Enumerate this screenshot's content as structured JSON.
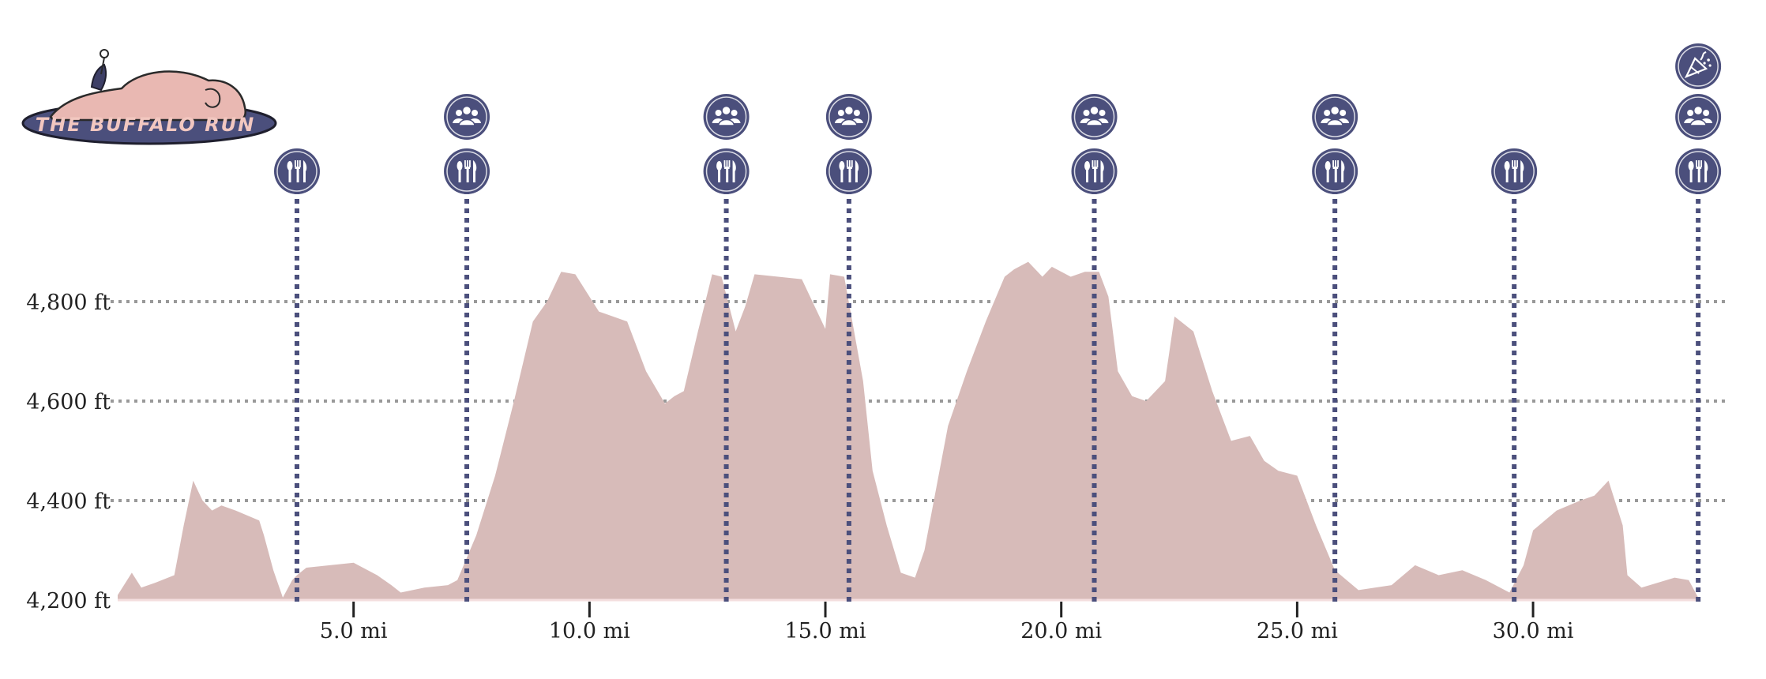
{
  "logo": {
    "text": "THE BUFFALO RUN"
  },
  "colors": {
    "area_fill": "#d7bbb9",
    "marker": "#4b4f7c",
    "grid": "#999999",
    "logo_water": "#4b4f7c",
    "logo_buffalo": "#e9b8b2"
  },
  "chart_data": {
    "type": "area",
    "title": "",
    "xlabel": "",
    "ylabel": "",
    "xlim": [
      0,
      34.0
    ],
    "ylim": [
      4200,
      4880
    ],
    "grid": {
      "x": false,
      "y": true
    },
    "x_ticks": [
      {
        "value": 5.0,
        "label": "5.0 mi"
      },
      {
        "value": 10.0,
        "label": "10.0 mi"
      },
      {
        "value": 15.0,
        "label": "15.0 mi"
      },
      {
        "value": 20.0,
        "label": "20.0 mi"
      },
      {
        "value": 25.0,
        "label": "25.0 mi"
      },
      {
        "value": 30.0,
        "label": "30.0 mi"
      }
    ],
    "y_ticks": [
      {
        "value": 4200,
        "label": "4,200 ft"
      },
      {
        "value": 4400,
        "label": "4,400 ft"
      },
      {
        "value": 4600,
        "label": "4,600 ft"
      },
      {
        "value": 4800,
        "label": "4,800 ft"
      }
    ],
    "series": [
      {
        "x": [
          0,
          0.3,
          0.5,
          0.8,
          1.2,
          1.4,
          1.6,
          1.8,
          2.0,
          2.2,
          2.5,
          3.0,
          3.1,
          3.3,
          3.5,
          3.7,
          3.8,
          4.0,
          4.5,
          5.0,
          5.5,
          5.8,
          6.0,
          6.5,
          7.0,
          7.2,
          7.6,
          8.0,
          8.4,
          8.8,
          9.1,
          9.4,
          9.7,
          10.2,
          10.5,
          10.8,
          11.2,
          11.6,
          11.8,
          12.0,
          12.3,
          12.6,
          12.8,
          13.1,
          13.3,
          13.5,
          14.0,
          14.5,
          15.0,
          15.1,
          15.4,
          15.8,
          16.0,
          16.3,
          16.6,
          16.9,
          17.1,
          17.3,
          17.6,
          18.0,
          18.4,
          18.8,
          19.0,
          19.3,
          19.6,
          19.8,
          20.2,
          20.5,
          20.8,
          21.0,
          21.2,
          21.5,
          21.8,
          22.2,
          22.4,
          22.8,
          23.2,
          23.6,
          24.0,
          24.3,
          24.6,
          25.0,
          25.4,
          25.8,
          26.3,
          27.0,
          27.5,
          28.0,
          28.5,
          29.0,
          29.5,
          29.8,
          30.0,
          30.5,
          31.0,
          31.3,
          31.6,
          31.9,
          32.0,
          32.3,
          33.0,
          33.3,
          33.5
        ],
        "y": [
          4210,
          4255,
          4225,
          4235,
          4250,
          4350,
          4440,
          4400,
          4380,
          4390,
          4380,
          4360,
          4330,
          4260,
          4205,
          4240,
          4250,
          4265,
          4270,
          4275,
          4250,
          4230,
          4215,
          4225,
          4230,
          4240,
          4330,
          4450,
          4600,
          4760,
          4800,
          4860,
          4855,
          4780,
          4770,
          4760,
          4660,
          4595,
          4610,
          4620,
          4740,
          4855,
          4850,
          4740,
          4790,
          4855,
          4850,
          4845,
          4745,
          4855,
          4850,
          4640,
          4460,
          4350,
          4255,
          4245,
          4300,
          4400,
          4550,
          4660,
          4760,
          4850,
          4865,
          4880,
          4850,
          4870,
          4850,
          4860,
          4860,
          4810,
          4660,
          4610,
          4600,
          4640,
          4770,
          4740,
          4620,
          4520,
          4530,
          4480,
          4460,
          4450,
          4350,
          4260,
          4220,
          4230,
          4270,
          4250,
          4260,
          4240,
          4215,
          4270,
          4340,
          4380,
          4400,
          4410,
          4440,
          4350,
          4250,
          4225,
          4245,
          4240,
          4205
        ]
      }
    ],
    "markers": [
      {
        "x": 3.8,
        "icons": [
          "utensils-icon"
        ]
      },
      {
        "x": 7.4,
        "icons": [
          "utensils-icon",
          "people-icon"
        ]
      },
      {
        "x": 12.9,
        "icons": [
          "utensils-icon",
          "people-icon"
        ]
      },
      {
        "x": 15.5,
        "icons": [
          "utensils-icon",
          "people-icon"
        ]
      },
      {
        "x": 20.7,
        "icons": [
          "utensils-icon",
          "people-icon"
        ]
      },
      {
        "x": 25.8,
        "icons": [
          "utensils-icon",
          "people-icon"
        ]
      },
      {
        "x": 29.6,
        "icons": [
          "utensils-icon"
        ]
      },
      {
        "x": 33.5,
        "icons": [
          "utensils-icon",
          "people-icon",
          "party-popper-icon"
        ]
      }
    ]
  }
}
